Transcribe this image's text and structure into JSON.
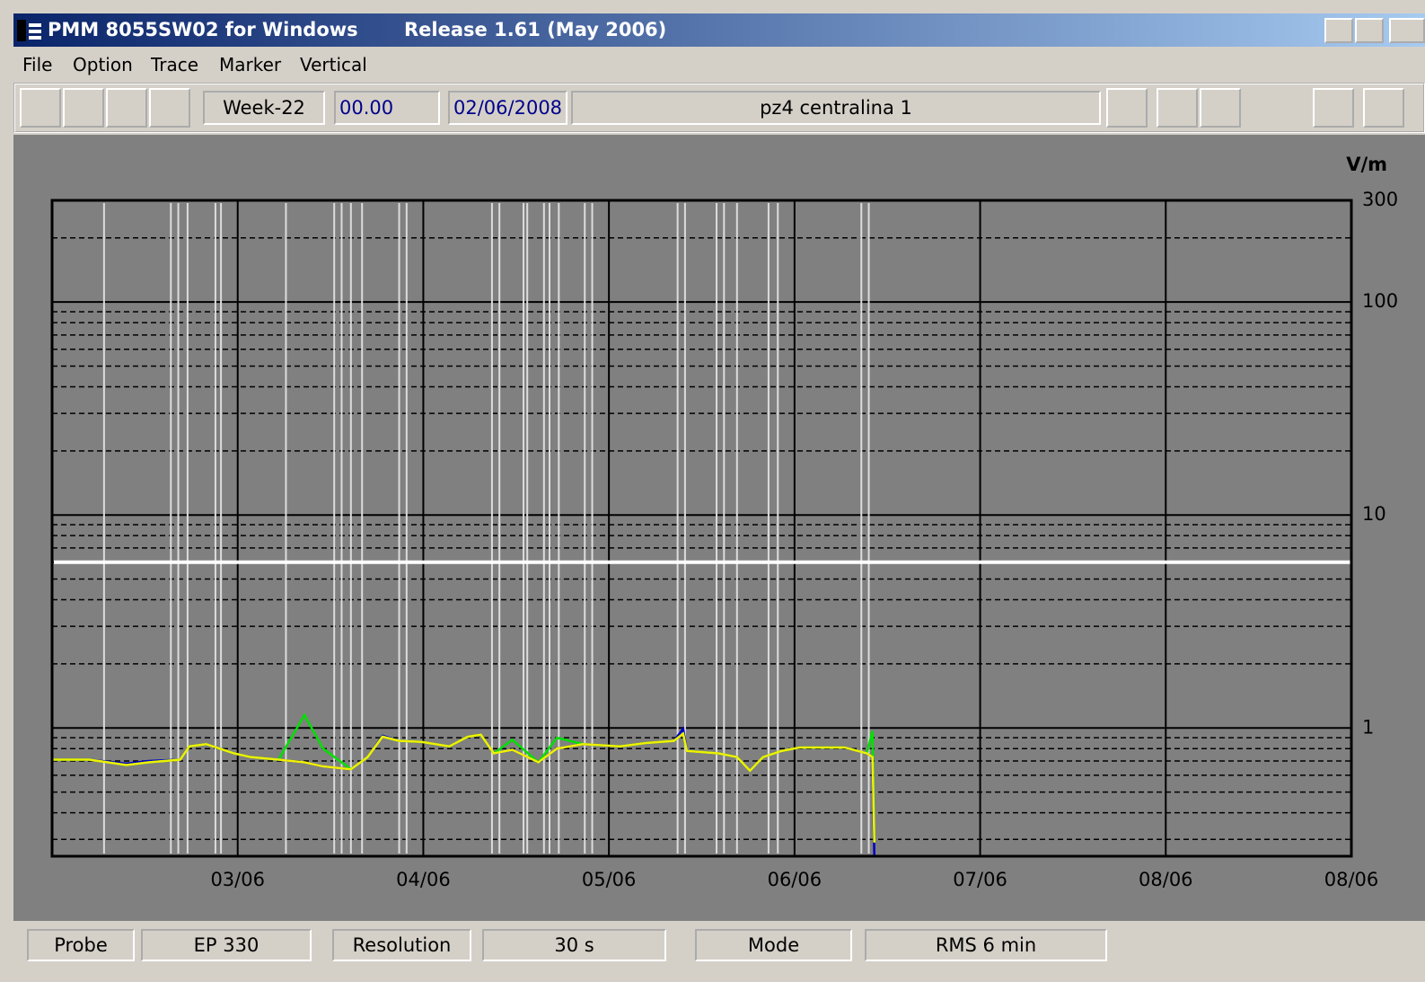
{
  "window": {
    "title": "PMM 8055SW02 for Windows",
    "release": "Release 1.61 (May 2006)"
  },
  "menu": [
    "File",
    "Option",
    "Trace",
    "Marker",
    "Vertical"
  ],
  "toolbar": {
    "week": "Week-22",
    "time": "00.00",
    "date": "02/06/2008",
    "station": "pz4 centralina 1"
  },
  "chart_data": {
    "type": "line",
    "y_unit": "V/m",
    "log_y": true,
    "minor_grid": true,
    "background": "#808080",
    "xlim": [
      2,
      9
    ],
    "ylim": [
      0.25,
      300
    ],
    "xticks": [
      {
        "value": 3,
        "label": "03/06"
      },
      {
        "value": 4,
        "label": "04/06"
      },
      {
        "value": 5,
        "label": "05/06"
      },
      {
        "value": 6,
        "label": "06/06"
      },
      {
        "value": 7,
        "label": "07/06"
      },
      {
        "value": 8,
        "label": "08/06"
      },
      {
        "value": 9,
        "label": "08/06"
      }
    ],
    "yticks": [
      1,
      10,
      100,
      300
    ],
    "threshold": 6,
    "threshold_color": "#ffffff",
    "event_x": [
      2.28,
      2.64,
      2.68,
      2.73,
      2.88,
      2.91,
      3.26,
      3.52,
      3.56,
      3.61,
      3.67,
      3.87,
      3.91,
      4.37,
      4.41,
      4.54,
      4.56,
      4.65,
      4.68,
      4.73,
      4.87,
      4.91,
      5.37,
      5.41,
      5.58,
      5.62,
      5.69,
      5.86,
      5.91,
      6.36,
      6.4
    ],
    "event_color": "#dcdcdc",
    "x": [
      2.0,
      2.2,
      2.4,
      2.52,
      2.69,
      2.74,
      2.83,
      2.98,
      3.07,
      3.22,
      3.36,
      3.46,
      3.61,
      3.7,
      3.78,
      3.87,
      3.99,
      4.14,
      4.24,
      4.31,
      4.38,
      4.48,
      4.62,
      4.72,
      4.86,
      5.06,
      5.2,
      5.35,
      5.4,
      5.42,
      5.59,
      5.69,
      5.76,
      5.83,
      5.93,
      6.03,
      6.27,
      6.39,
      6.42,
      6.43
    ],
    "series": [
      {
        "color": "#0000c8",
        "values": [
          0.71,
          0.71,
          0.68,
          0.7,
          0.71,
          0.82,
          0.84,
          0.76,
          0.73,
          0.71,
          0.69,
          0.66,
          0.64,
          0.73,
          0.92,
          0.87,
          0.86,
          0.82,
          0.91,
          0.93,
          0.76,
          0.79,
          0.69,
          0.8,
          0.84,
          0.82,
          0.85,
          0.87,
          0.99,
          0.78,
          0.76,
          0.73,
          0.63,
          0.73,
          0.78,
          0.81,
          0.81,
          0.76,
          0.73,
          0.25
        ]
      },
      {
        "color": "#00e000",
        "values": [
          0.71,
          0.71,
          0.67,
          0.69,
          0.71,
          0.82,
          0.84,
          0.76,
          0.73,
          0.71,
          1.15,
          0.8,
          0.64,
          0.73,
          0.91,
          0.87,
          0.86,
          0.82,
          0.91,
          0.93,
          0.76,
          0.88,
          0.69,
          0.9,
          0.84,
          0.82,
          0.85,
          0.87,
          0.94,
          0.78,
          0.76,
          0.73,
          0.63,
          0.73,
          0.78,
          0.81,
          0.81,
          0.76,
          0.97,
          0.29
        ]
      },
      {
        "color": "#f0f000",
        "values": [
          0.71,
          0.71,
          0.67,
          0.69,
          0.71,
          0.82,
          0.84,
          0.76,
          0.73,
          0.71,
          0.69,
          0.66,
          0.64,
          0.73,
          0.91,
          0.87,
          0.86,
          0.82,
          0.91,
          0.93,
          0.76,
          0.79,
          0.69,
          0.8,
          0.84,
          0.82,
          0.85,
          0.87,
          0.94,
          0.78,
          0.76,
          0.73,
          0.63,
          0.73,
          0.78,
          0.81,
          0.81,
          0.76,
          0.73,
          0.29
        ]
      }
    ]
  },
  "status": [
    "Probe",
    "EP 330",
    "Resolution",
    "30 s",
    "Mode",
    "RMS  6 min"
  ]
}
